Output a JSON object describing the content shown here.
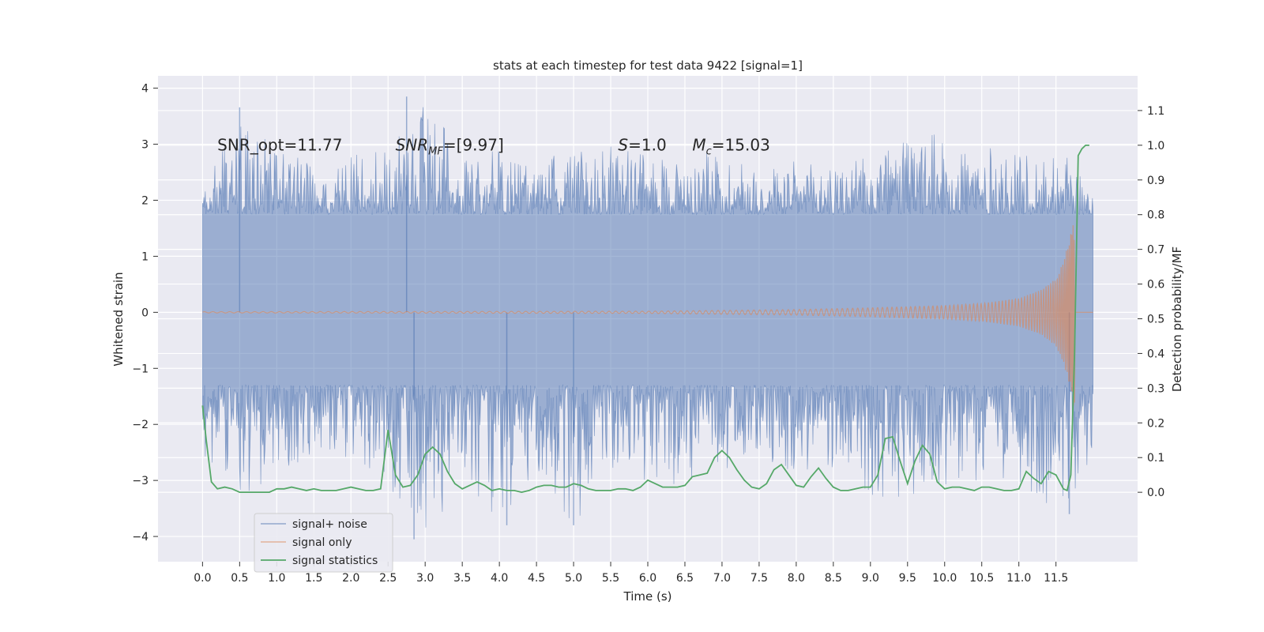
{
  "chart_data": {
    "type": "line",
    "title": "stats at each timestep for test data 9422 [signal=1]",
    "xlabel": "Time (s)",
    "ylabel_left": "Whitened strain",
    "ylabel_right": "Detection probability/MF",
    "xlim": [
      -0.6,
      12.6
    ],
    "ylim_left": [
      -4.45,
      4.22
    ],
    "ylim_right": [
      -0.2,
      1.2
    ],
    "xticks": [
      0.0,
      0.5,
      1.0,
      1.5,
      2.0,
      2.5,
      3.0,
      3.5,
      4.0,
      4.5,
      5.0,
      5.5,
      6.0,
      6.5,
      7.0,
      7.5,
      8.0,
      8.5,
      9.0,
      9.5,
      10.0,
      10.5,
      11.0,
      11.5
    ],
    "xtick_labels": [
      "0.0",
      "0.5",
      "1.0",
      "1.5",
      "2.0",
      "2.5",
      "3.0",
      "3.5",
      "4.0",
      "4.5",
      "5.0",
      "5.5",
      "6.0",
      "6.5",
      "7.0",
      "7.5",
      "8.0",
      "8.5",
      "9.0",
      "9.5",
      "10.0",
      "10.5",
      "11.0",
      "11.5"
    ],
    "yticks_left": [
      -4,
      -3,
      -2,
      -1,
      0,
      1,
      2,
      3,
      4
    ],
    "ytick_labels_left": [
      "−4",
      "−3",
      "−2",
      "−1",
      "0",
      "1",
      "2",
      "3",
      "4"
    ],
    "yticks_right": [
      0.0,
      0.1,
      0.2,
      0.3,
      0.4,
      0.5,
      0.6,
      0.7,
      0.8,
      0.9,
      1.0,
      1.1
    ],
    "ytick_labels_right": [
      "0.0",
      "0.1",
      "0.2",
      "0.3",
      "0.4",
      "0.5",
      "0.6",
      "0.7",
      "0.8",
      "0.9",
      "1.0",
      "1.1"
    ],
    "grid": true,
    "legend_position": "lower-left",
    "annotations": [
      {
        "text": "SNR_opt=11.77",
        "x": 0.2,
        "y": 3.0
      },
      {
        "text": "SNR_MF=[9.97]",
        "x": 2.6,
        "y": 3.0
      },
      {
        "text": "S=1.0",
        "x": 5.6,
        "y": 3.0
      },
      {
        "text": "M_c=15.03",
        "x": 6.6,
        "y": 3.0
      }
    ],
    "series": [
      {
        "name": "signal+ noise",
        "axis": "left",
        "color": "#4c72b0",
        "time_range": [
          0.0,
          12.0
        ],
        "envelope": {
          "x": [
            0.0,
            0.5,
            1.0,
            1.5,
            2.0,
            2.5,
            3.0,
            3.5,
            4.0,
            4.5,
            5.0,
            5.5,
            6.0,
            6.5,
            7.0,
            7.5,
            8.0,
            8.5,
            9.0,
            9.5,
            10.0,
            10.5,
            11.0,
            11.5,
            12.0
          ],
          "max": [
            2.3,
            3.6,
            3.0,
            2.6,
            2.8,
            2.9,
            3.8,
            2.8,
            2.9,
            2.7,
            2.9,
            3.0,
            2.8,
            2.8,
            2.9,
            2.6,
            2.7,
            2.6,
            2.8,
            3.1,
            3.2,
            3.0,
            2.8,
            3.0,
            2.2
          ],
          "min": [
            -3.0,
            -3.4,
            -3.0,
            -2.5,
            -2.6,
            -3.2,
            -4.05,
            -3.0,
            -3.8,
            -2.9,
            -3.8,
            -3.0,
            -3.0,
            -3.1,
            -2.8,
            -2.7,
            -2.9,
            -2.8,
            -3.3,
            -3.3,
            -3.1,
            -3.0,
            -3.0,
            -3.6,
            -3.0
          ],
          "spike_max": 3.85,
          "spike_min": -4.05
        }
      },
      {
        "name": "signal only",
        "axis": "left",
        "color": "#dd8452",
        "time_range": [
          0.0,
          12.0
        ],
        "peak_time": 11.75,
        "envelope": {
          "t": [
            0.0,
            6.0,
            8.0,
            9.0,
            10.0,
            10.5,
            11.0,
            11.3,
            11.5,
            11.6,
            11.7,
            11.75
          ],
          "amp": [
            0.01,
            0.02,
            0.05,
            0.08,
            0.12,
            0.16,
            0.25,
            0.4,
            0.6,
            0.9,
            1.4,
            1.75
          ]
        }
      },
      {
        "name": "signal statistics",
        "axis": "right",
        "color": "#55a868",
        "x": [
          0.0,
          0.05,
          0.12,
          0.2,
          0.3,
          0.4,
          0.5,
          0.6,
          0.7,
          0.8,
          0.9,
          1.0,
          1.1,
          1.2,
          1.3,
          1.4,
          1.5,
          1.6,
          1.7,
          1.8,
          1.9,
          2.0,
          2.1,
          2.2,
          2.3,
          2.4,
          2.5,
          2.6,
          2.7,
          2.8,
          2.9,
          3.0,
          3.1,
          3.2,
          3.3,
          3.4,
          3.5,
          3.6,
          3.7,
          3.8,
          3.9,
          4.0,
          4.1,
          4.2,
          4.3,
          4.4,
          4.5,
          4.6,
          4.7,
          4.8,
          4.9,
          5.0,
          5.1,
          5.2,
          5.3,
          5.4,
          5.5,
          5.6,
          5.7,
          5.8,
          5.9,
          6.0,
          6.1,
          6.2,
          6.3,
          6.4,
          6.5,
          6.6,
          6.7,
          6.8,
          6.9,
          7.0,
          7.1,
          7.2,
          7.3,
          7.4,
          7.5,
          7.6,
          7.7,
          7.8,
          7.9,
          8.0,
          8.1,
          8.2,
          8.3,
          8.4,
          8.5,
          8.6,
          8.7,
          8.8,
          8.9,
          9.0,
          9.1,
          9.2,
          9.3,
          9.4,
          9.5,
          9.6,
          9.7,
          9.8,
          9.9,
          10.0,
          10.1,
          10.2,
          10.3,
          10.4,
          10.5,
          10.6,
          10.7,
          10.8,
          10.9,
          11.0,
          11.1,
          11.2,
          11.3,
          11.4,
          11.5,
          11.6,
          11.65,
          11.7,
          11.75,
          11.8,
          11.85,
          11.9,
          11.95
        ],
        "y": [
          0.25,
          0.15,
          0.03,
          0.01,
          0.015,
          0.01,
          0.0,
          0.0,
          0.0,
          0.0,
          0.0,
          0.01,
          0.01,
          0.015,
          0.01,
          0.005,
          0.01,
          0.005,
          0.005,
          0.005,
          0.01,
          0.015,
          0.01,
          0.005,
          0.005,
          0.01,
          0.18,
          0.05,
          0.015,
          0.02,
          0.05,
          0.11,
          0.13,
          0.11,
          0.06,
          0.025,
          0.01,
          0.02,
          0.03,
          0.02,
          0.005,
          0.01,
          0.005,
          0.005,
          0.0,
          0.005,
          0.015,
          0.02,
          0.02,
          0.015,
          0.015,
          0.025,
          0.02,
          0.01,
          0.005,
          0.005,
          0.005,
          0.01,
          0.01,
          0.005,
          0.015,
          0.035,
          0.025,
          0.015,
          0.015,
          0.015,
          0.02,
          0.045,
          0.05,
          0.055,
          0.1,
          0.12,
          0.1,
          0.065,
          0.035,
          0.015,
          0.01,
          0.025,
          0.065,
          0.08,
          0.05,
          0.02,
          0.015,
          0.045,
          0.07,
          0.04,
          0.015,
          0.005,
          0.005,
          0.01,
          0.015,
          0.015,
          0.05,
          0.155,
          0.16,
          0.09,
          0.025,
          0.09,
          0.135,
          0.11,
          0.03,
          0.01,
          0.015,
          0.015,
          0.01,
          0.005,
          0.015,
          0.015,
          0.01,
          0.005,
          0.005,
          0.01,
          0.06,
          0.04,
          0.025,
          0.06,
          0.05,
          0.01,
          0.005,
          0.05,
          0.4,
          0.97,
          0.99,
          1.0,
          1.0
        ]
      }
    ]
  }
}
